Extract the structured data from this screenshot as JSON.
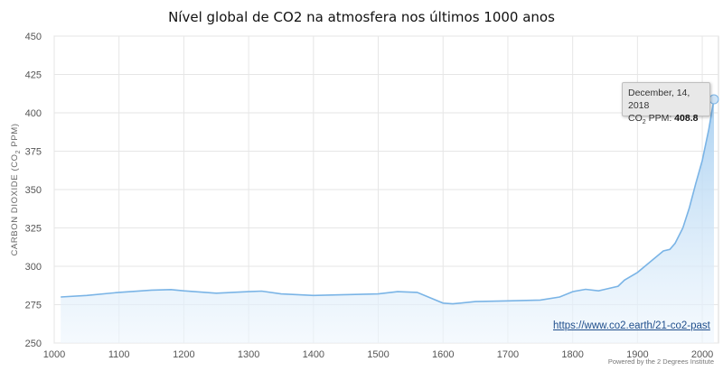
{
  "chart_data": {
    "type": "area",
    "title": "Nível global de CO2 na atmosfera nos  últimos 1000 anos",
    "ylabel": "CARBON DIOXIDE (CO2 PPM)",
    "xlabel": "",
    "xlim": [
      1000,
      2025
    ],
    "ylim": [
      250,
      450
    ],
    "x_ticks": [
      "1000",
      "1100",
      "1200",
      "1300",
      "1400",
      "1500",
      "1600",
      "1700",
      "1800",
      "1900",
      "2000"
    ],
    "y_ticks": [
      "250",
      "275",
      "300",
      "325",
      "350",
      "375",
      "400",
      "425",
      "450"
    ],
    "grid": true,
    "series": [
      {
        "x": [
          1010,
          1050,
          1100,
          1150,
          1180,
          1200,
          1250,
          1300,
          1320,
          1350,
          1400,
          1450,
          1500,
          1530,
          1560,
          1600,
          1615,
          1650,
          1700,
          1750,
          1780,
          1800,
          1820,
          1840,
          1850,
          1870,
          1880,
          1900,
          1920,
          1940,
          1950,
          1958,
          1970,
          1980,
          1990,
          2000,
          2010,
          2018
        ],
        "y": [
          280,
          281,
          283,
          284.5,
          284.8,
          284,
          282.5,
          283.5,
          283.8,
          282,
          281,
          281.5,
          282,
          283.5,
          283,
          276,
          275.5,
          277,
          277.5,
          278,
          280,
          283.5,
          285,
          284,
          285,
          287,
          291,
          296,
          303,
          310,
          311,
          315,
          325,
          338,
          354,
          369,
          389,
          408.8
        ]
      }
    ],
    "tooltip": {
      "date": "December, 14, 2018",
      "label": "CO",
      "label_sub": "2",
      "label_suffix": " PPM: ",
      "value": "408.8"
    },
    "source_link": "https://www.co2.earth/21-co2-past",
    "credit": "Powered by the 2 Degrees Institute",
    "colors": {
      "line": "#7ab4e6",
      "fill_top": "#a9d0f1",
      "fill_bottom": "#eef6fd",
      "grid": "#e6e6e6"
    }
  }
}
